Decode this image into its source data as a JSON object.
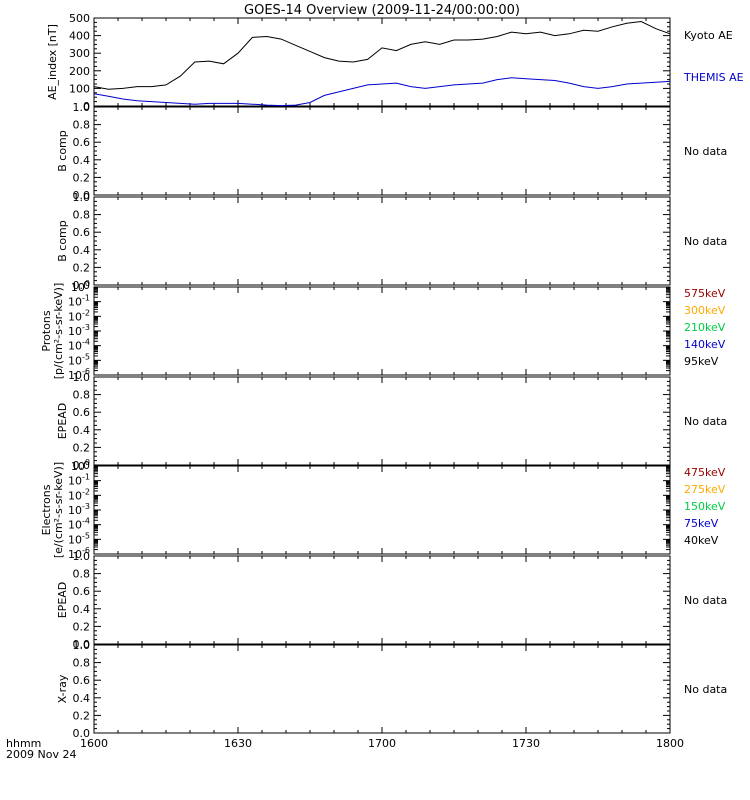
{
  "title": "GOES-14 Overview (2009-11-24/00:00:00)",
  "time_axis": {
    "label_line1": "hhmm",
    "label_line2": "2009 Nov 24",
    "ticks": [
      "1600",
      "1630",
      "1700",
      "1730",
      "1800"
    ]
  },
  "colors": {
    "frame": "#000000",
    "kyoto": "#000000",
    "themis": "#0000cc",
    "c_575": "#990000",
    "c_300": "#ffaa00",
    "c_210": "#00cc44",
    "c_140": "#0000cc",
    "c_95": "#000000"
  },
  "chart_data": [
    {
      "type": "line",
      "ylabel": "AE_index [nT]",
      "ylim": [
        0,
        500
      ],
      "yticks": [
        "0",
        "100",
        "200",
        "300",
        "400",
        "500"
      ],
      "x_units": "minutes after 16:00",
      "series": [
        {
          "name": "Kyoto AE",
          "color_key": "kyoto",
          "x": [
            0,
            3,
            6,
            9,
            12,
            15,
            18,
            21,
            24,
            27,
            30,
            33,
            36,
            39,
            42,
            45,
            48,
            51,
            54,
            57,
            60,
            63,
            66,
            69,
            72,
            75,
            78,
            81,
            84,
            87,
            90,
            93,
            96,
            99,
            102,
            105,
            108,
            111,
            114,
            117,
            120
          ],
          "y": [
            110,
            95,
            100,
            110,
            110,
            120,
            170,
            250,
            255,
            240,
            300,
            390,
            395,
            380,
            345,
            310,
            275,
            255,
            250,
            265,
            330,
            315,
            350,
            365,
            350,
            375,
            375,
            380,
            395,
            420,
            410,
            420,
            400,
            410,
            430,
            425,
            450,
            470,
            480,
            440,
            410
          ]
        },
        {
          "name": "THEMIS AE",
          "color_key": "themis",
          "x": [
            0,
            3,
            6,
            9,
            12,
            15,
            18,
            21,
            24,
            27,
            30,
            33,
            36,
            39,
            42,
            45,
            48,
            51,
            54,
            57,
            60,
            63,
            66,
            69,
            72,
            75,
            78,
            81,
            84,
            87,
            90,
            93,
            96,
            99,
            102,
            105,
            108,
            111,
            114,
            117,
            120
          ],
          "y": [
            70,
            55,
            40,
            30,
            25,
            20,
            15,
            10,
            15,
            15,
            15,
            10,
            5,
            2,
            5,
            20,
            60,
            80,
            100,
            120,
            125,
            130,
            110,
            100,
            110,
            120,
            125,
            130,
            150,
            160,
            155,
            150,
            145,
            130,
            110,
            100,
            110,
            125,
            130,
            135,
            140
          ]
        }
      ]
    },
    {
      "type": "line",
      "ylabel": "B comp",
      "ylim": [
        0,
        1
      ],
      "yticks": [
        "0.0",
        "0.2",
        "0.4",
        "0.6",
        "0.8",
        "1.0"
      ],
      "note": "No data",
      "series": []
    },
    {
      "type": "line",
      "ylabel": "B comp",
      "ylim": [
        0,
        1
      ],
      "yticks": [
        "0.0",
        "0.2",
        "0.4",
        "0.6",
        "0.8",
        "1.0"
      ],
      "note": "No data",
      "series": []
    },
    {
      "type": "line",
      "ylabel_line1": "Protons",
      "ylabel_line2": "[p/(cm²-s-sr-keV)]",
      "log_scale": true,
      "ylim": [
        1e-06,
        1
      ],
      "ytick_exponents": [
        "-6",
        "-5",
        "-4",
        "-3",
        "-2",
        "-1",
        "0"
      ],
      "series": [
        {
          "name": "575keV",
          "color_key": "c_575"
        },
        {
          "name": "300keV",
          "color_key": "c_300"
        },
        {
          "name": "210keV",
          "color_key": "c_210"
        },
        {
          "name": "140keV",
          "color_key": "c_140"
        },
        {
          "name": "95keV",
          "color_key": "c_95"
        }
      ]
    },
    {
      "type": "line",
      "ylabel": "EPEAD",
      "ylim": [
        0,
        1
      ],
      "yticks": [
        "0.0",
        "0.2",
        "0.4",
        "0.6",
        "0.8",
        "1.0"
      ],
      "note": "No data",
      "series": []
    },
    {
      "type": "line",
      "ylabel_line1": "Electrons",
      "ylabel_line2": "[e/(cm²-s-sr-keV)]",
      "log_scale": true,
      "ylim": [
        1e-06,
        1
      ],
      "ytick_exponents": [
        "-6",
        "-5",
        "-4",
        "-3",
        "-2",
        "-1",
        "0"
      ],
      "series": [
        {
          "name": "475keV",
          "color_key": "c_575"
        },
        {
          "name": "275keV",
          "color_key": "c_300"
        },
        {
          "name": "150keV",
          "color_key": "c_210"
        },
        {
          "name": "75keV",
          "color_key": "c_140"
        },
        {
          "name": "40keV",
          "color_key": "c_95"
        }
      ]
    },
    {
      "type": "line",
      "ylabel": "EPEAD",
      "ylim": [
        0,
        1
      ],
      "yticks": [
        "0.0",
        "0.2",
        "0.4",
        "0.6",
        "0.8",
        "1.0"
      ],
      "note": "No data",
      "series": []
    },
    {
      "type": "line",
      "ylabel": "X-ray",
      "ylim": [
        0,
        1
      ],
      "yticks": [
        "0.0",
        "0.2",
        "0.4",
        "0.6",
        "0.8",
        "1.0"
      ],
      "note": "No data",
      "series": []
    }
  ]
}
